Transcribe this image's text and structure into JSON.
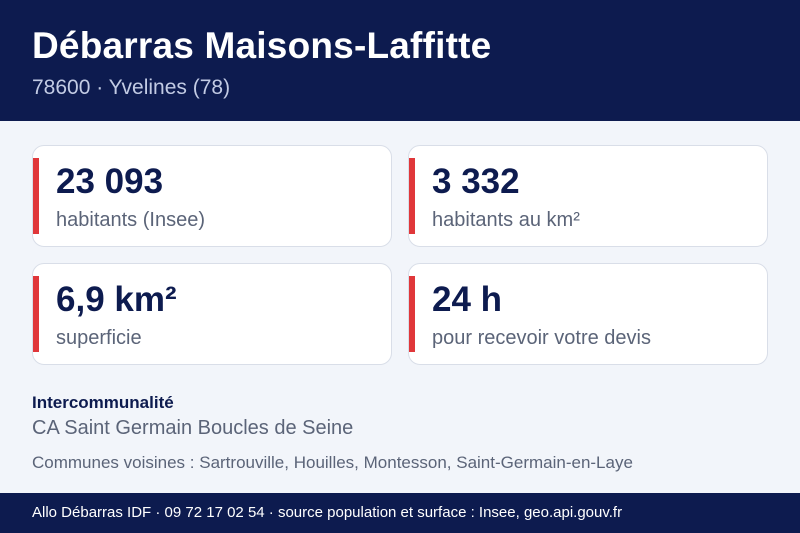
{
  "header": {
    "title": "Débarras Maisons-Laffitte",
    "subtitle": "78600 · Yvelines (78)"
  },
  "stats": [
    {
      "value": "23 093",
      "label": "habitants (Insee)"
    },
    {
      "value": "3 332",
      "label": "habitants au km²"
    },
    {
      "value": "6,9 km²",
      "label": "superficie"
    },
    {
      "value": "24 h",
      "label": "pour recevoir votre devis"
    }
  ],
  "intercommunalite": {
    "title": "Intercommunalité",
    "name": "CA Saint Germain Boucles de Seine"
  },
  "voisines": "Communes voisines : Sartrouville, Houilles, Montesson, Saint-Germain-en-Laye",
  "footer": "Allo Débarras IDF · 09 72 17 02 54 · source population et surface : Insee, geo.api.gouv.fr",
  "colors": {
    "navy": "#0d1b4f",
    "accent_red": "#e0373a",
    "background": "#f2f5fa",
    "muted_text": "#5b6478"
  }
}
